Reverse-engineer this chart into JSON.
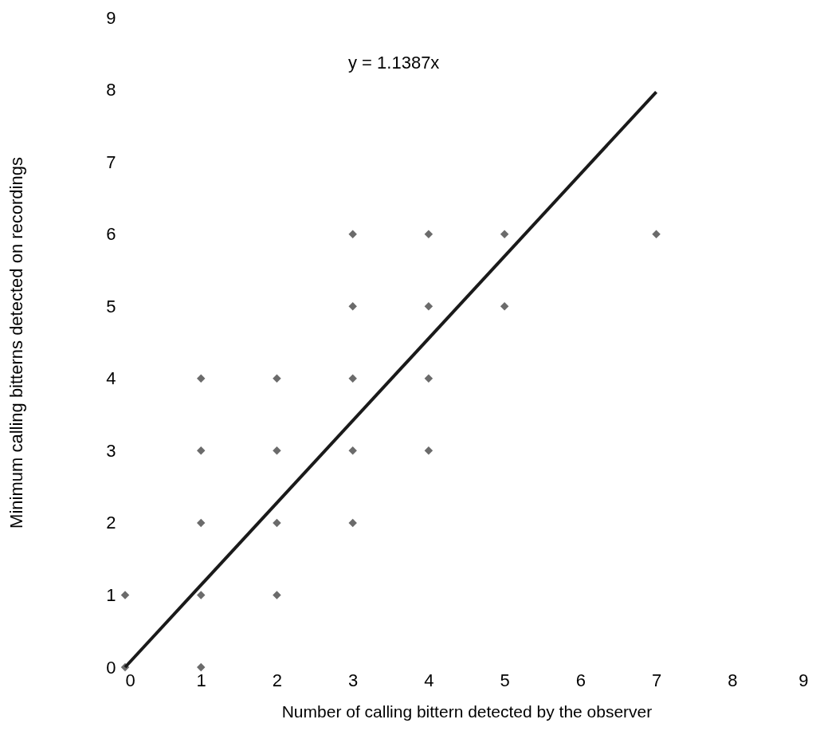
{
  "chart_data": {
    "type": "scatter",
    "xlabel": "Number of calling bittern detected by the observer",
    "ylabel": "Minimum calling bitterns detected on recordings",
    "xlim": [
      0,
      9
    ],
    "xticks": [
      0,
      1,
      2,
      3,
      4,
      5,
      6,
      7,
      8,
      9
    ],
    "ylim": [
      0,
      9
    ],
    "yticks": [
      0,
      1,
      2,
      3,
      4,
      5,
      6,
      7,
      8,
      9
    ],
    "marker": "diamond",
    "annotations": [
      "y = 1.1387x"
    ],
    "series": [
      {
        "color": "#6b6b6b",
        "x": [
          0,
          0,
          1,
          1,
          1,
          1,
          1,
          2,
          2,
          2,
          2,
          3,
          3,
          3,
          3,
          3,
          4,
          4,
          4,
          4,
          5,
          5,
          7
        ],
        "values": [
          0,
          1,
          0,
          1,
          2,
          3,
          4,
          1,
          2,
          3,
          4,
          2,
          3,
          4,
          5,
          6,
          3,
          4,
          5,
          6,
          5,
          6,
          6
        ]
      },
      {
        "type": "line",
        "marker": "none",
        "line_style": "solid",
        "color": "#1a1a1a",
        "x": [
          0,
          7
        ],
        "values": [
          0,
          7.97
        ]
      }
    ]
  }
}
